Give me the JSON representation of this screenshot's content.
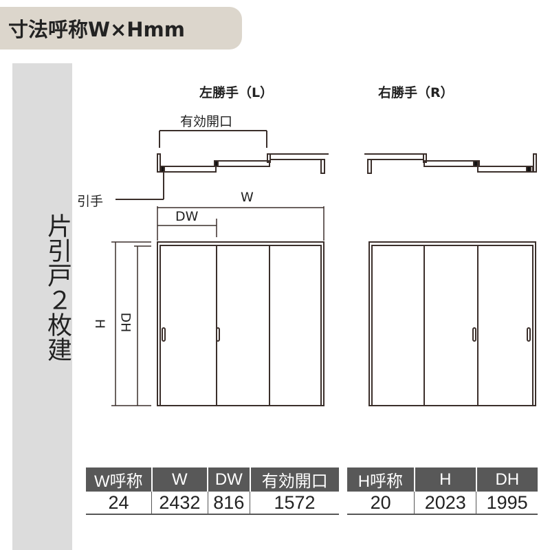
{
  "title": "寸法呼称W×Hmm",
  "sidebar_label": "片引戸２枚建",
  "diagram": {
    "left_title": "左勝手（L）",
    "right_title": "右勝手（R）",
    "effective_opening_label": "有効開口",
    "handle_label": "引手",
    "w_label": "W",
    "dw_label": "DW",
    "h_label": "H",
    "dh_label": "DH"
  },
  "width_table": {
    "headers": [
      "W呼称",
      "W",
      "DW",
      "有効開口"
    ],
    "values": [
      "24",
      "2432",
      "816",
      "1572"
    ]
  },
  "height_table": {
    "headers": [
      "H呼称",
      "H",
      "DH"
    ],
    "values": [
      "20",
      "2023",
      "1995"
    ]
  }
}
